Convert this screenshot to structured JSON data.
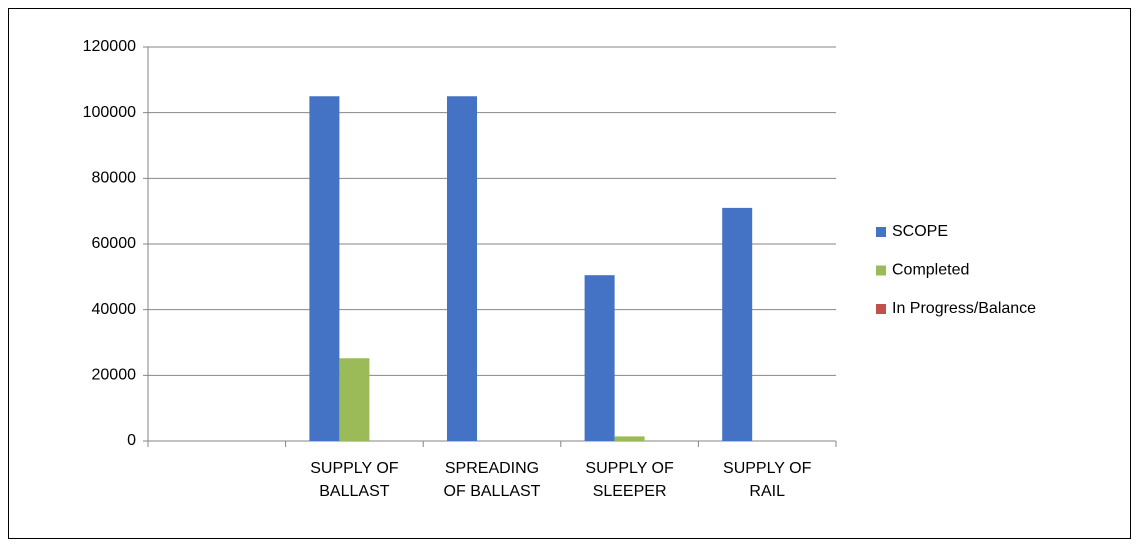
{
  "chart_data": {
    "type": "bar",
    "categories": [
      null,
      "SUPPLY OF BALLAST",
      "SPREADING OF BALLAST",
      "SUPPLY OF SLEEPER",
      "SUPPLY OF RAIL"
    ],
    "series": [
      {
        "name": "SCOPE",
        "color": "#4472c4",
        "values": [
          null,
          105000,
          105000,
          50500,
          71000
        ]
      },
      {
        "name": "Completed",
        "color": "#9bbb59",
        "values": [
          null,
          25200,
          0,
          1400,
          0
        ]
      },
      {
        "name": "In Progress/Balance",
        "color": "#c0504d",
        "values": [
          null,
          0,
          0,
          0,
          0
        ]
      }
    ],
    "ylim": [
      0,
      120000
    ],
    "yticks": [
      0,
      20000,
      40000,
      60000,
      80000,
      100000,
      120000
    ],
    "grid": true,
    "legend": "right"
  }
}
